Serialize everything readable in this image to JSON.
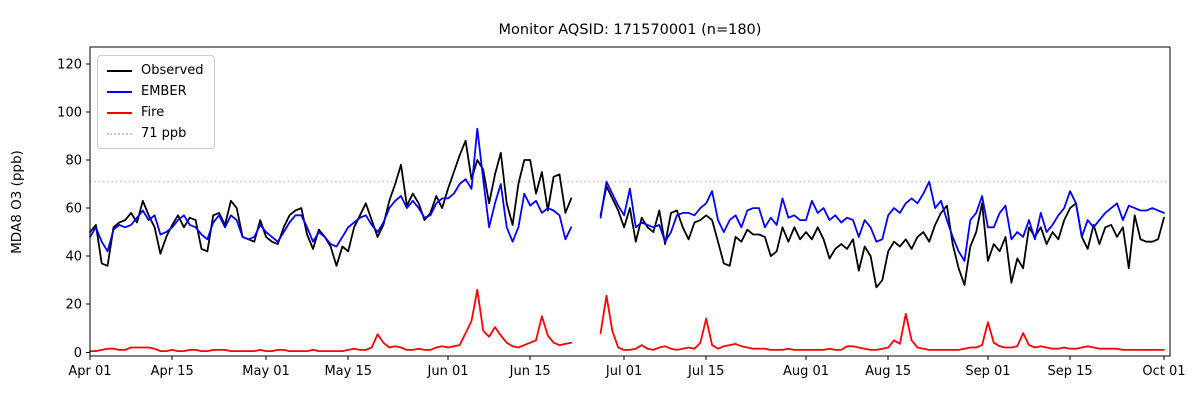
{
  "chart_data": {
    "type": "line",
    "title": "Monitor AQSID: 171570001 (n=180)",
    "xlabel": "",
    "ylabel": "MDA8 O3 (ppb)",
    "ylim": [
      0,
      120
    ],
    "y_ticks": [
      0,
      20,
      40,
      60,
      80,
      100,
      120
    ],
    "x_tick_labels": [
      "Apr 01",
      "Apr 15",
      "May 01",
      "May 15",
      "Jun 01",
      "Jun 15",
      "Jul 01",
      "Jul 15",
      "Aug 01",
      "Aug 15",
      "Sep 01",
      "Sep 15",
      "Oct 01"
    ],
    "x_tick_day_index": [
      0,
      14,
      30,
      44,
      61,
      75,
      91,
      105,
      122,
      136,
      153,
      167,
      183
    ],
    "x_start_date": "Apr 01",
    "x_end_date": "Oct 01",
    "grid": false,
    "legend_position": "upper left",
    "threshold_line": {
      "label": "71 ppb",
      "value": 71,
      "color": "#c8c8c8",
      "style": "dotted"
    },
    "series": [
      {
        "name": "Observed",
        "color": "#000000",
        "values": [
          50,
          53,
          37,
          36,
          52,
          54,
          55,
          58,
          54,
          63,
          57,
          52,
          41,
          48,
          53,
          57,
          52,
          56,
          55,
          43,
          42,
          57,
          58,
          53,
          63,
          60,
          48,
          47,
          46,
          55,
          48,
          46,
          45,
          52,
          57,
          59,
          60,
          49,
          43,
          51,
          48,
          44,
          36,
          44,
          42,
          52,
          57,
          62,
          55,
          48,
          53,
          63,
          70,
          78,
          61,
          66,
          62,
          55,
          58,
          65,
          60,
          68,
          75,
          82,
          88,
          72,
          80,
          76,
          62,
          74,
          83,
          62,
          53,
          70,
          80,
          80,
          66,
          75,
          59,
          73,
          74,
          58,
          64,
          null,
          null,
          null,
          null,
          57,
          69,
          64,
          59,
          52,
          60,
          46,
          56,
          52,
          50,
          59,
          45,
          58,
          59,
          52,
          47,
          54,
          55,
          57,
          55,
          46,
          37,
          36,
          48,
          46,
          51,
          49,
          49,
          48,
          40,
          42,
          52,
          46,
          52,
          47,
          50,
          47,
          52,
          47,
          39,
          43,
          45,
          43,
          47,
          34,
          44,
          40,
          27,
          30,
          42,
          46,
          44,
          47,
          43,
          48,
          50,
          46,
          53,
          58,
          61,
          45,
          35,
          28,
          44,
          50,
          62,
          38,
          45,
          42,
          48,
          29,
          39,
          35,
          52,
          48,
          52,
          45,
          50,
          47,
          55,
          60,
          62,
          48,
          43,
          53,
          45,
          52,
          53,
          48,
          52,
          35,
          57,
          47,
          46,
          46,
          47,
          56
        ]
      },
      {
        "name": "EMBER",
        "color": "#0000ff",
        "values": [
          48,
          52,
          46,
          42,
          51,
          53,
          52,
          53,
          56,
          59,
          55,
          57,
          49,
          50,
          52,
          55,
          57,
          53,
          52,
          49,
          47,
          54,
          57,
          52,
          57,
          55,
          48,
          47,
          48,
          53,
          50,
          48,
          46,
          50,
          54,
          57,
          57,
          52,
          46,
          50,
          48,
          45,
          44,
          48,
          52,
          54,
          56,
          57,
          53,
          50,
          54,
          60,
          63,
          65,
          60,
          63,
          60,
          56,
          57,
          62,
          64,
          64,
          66,
          70,
          72,
          68,
          93,
          72,
          52,
          62,
          70,
          52,
          46,
          52,
          66,
          61,
          63,
          58,
          60,
          59,
          57,
          47,
          52,
          null,
          null,
          null,
          null,
          56,
          71,
          66,
          61,
          57,
          68,
          52,
          54,
          53,
          52,
          53,
          46,
          50,
          57,
          58,
          58,
          57,
          60,
          62,
          67,
          55,
          50,
          55,
          57,
          52,
          59,
          60,
          60,
          52,
          56,
          53,
          64,
          56,
          57,
          55,
          55,
          63,
          58,
          60,
          55,
          57,
          54,
          56,
          55,
          48,
          55,
          52,
          46,
          47,
          57,
          60,
          58,
          62,
          64,
          62,
          66,
          71,
          60,
          63,
          55,
          48,
          42,
          38,
          55,
          58,
          65,
          52,
          52,
          58,
          61,
          47,
          50,
          48,
          55,
          47,
          58,
          50,
          53,
          57,
          60,
          67,
          62,
          48,
          55,
          52,
          55,
          58,
          60,
          62,
          55,
          61,
          60,
          59,
          59,
          60,
          59,
          58
        ]
      },
      {
        "name": "Fire",
        "color": "#ff0000",
        "values": [
          0.5,
          0.5,
          1,
          1.5,
          1.5,
          1,
          1,
          2,
          2,
          2,
          2,
          1.5,
          0.5,
          0.5,
          1,
          0.5,
          0.5,
          1,
          1,
          0.5,
          0.5,
          1,
          1,
          1,
          0.5,
          0.5,
          0.5,
          0.5,
          0.5,
          1,
          0.5,
          0.5,
          1,
          1,
          0.5,
          0.5,
          0.5,
          0.5,
          1,
          0.5,
          0.5,
          0.5,
          0.5,
          0.5,
          1,
          1.5,
          1,
          1,
          2,
          7.5,
          4,
          2,
          2.5,
          2,
          1,
          1,
          1.5,
          1,
          1,
          2,
          2.5,
          2,
          2.5,
          3,
          8,
          13,
          26,
          9,
          6.5,
          10.5,
          7,
          4,
          2.5,
          2,
          3,
          4,
          5,
          15,
          7,
          4,
          3,
          3.5,
          4,
          null,
          null,
          null,
          null,
          8,
          23.5,
          9,
          2,
          1,
          1,
          1.5,
          3,
          1.5,
          1,
          2,
          2.5,
          1.5,
          1,
          1.5,
          2,
          1.5,
          4,
          14,
          3,
          1.5,
          2.5,
          3,
          3.5,
          2.5,
          2,
          1.5,
          1.5,
          1.5,
          1,
          1,
          1,
          1.5,
          1,
          1,
          1,
          1,
          1,
          1,
          1.5,
          1,
          1,
          2.5,
          2.5,
          2,
          1.5,
          1,
          1,
          1.5,
          2,
          5,
          3.5,
          16,
          5,
          2,
          1.5,
          1,
          1,
          1,
          1,
          1,
          1,
          1.5,
          2,
          2,
          3,
          12.5,
          4,
          2.5,
          2,
          2,
          2.5,
          8,
          3,
          2,
          2.5,
          2,
          1.5,
          1.5,
          2,
          1.5,
          1.5,
          2,
          2.5,
          2,
          1.5,
          1.5,
          1.5,
          1.5,
          1,
          1,
          1,
          1,
          1,
          1,
          1,
          1
        ]
      }
    ]
  }
}
